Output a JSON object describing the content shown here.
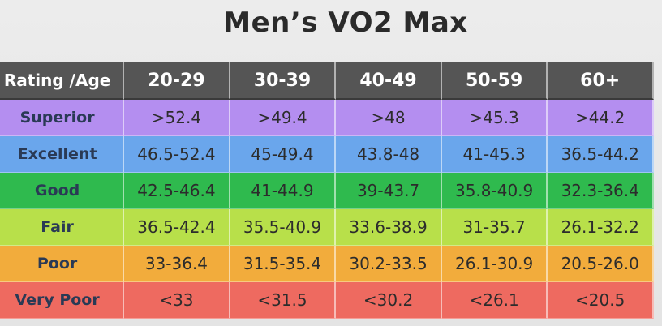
{
  "title": "Men’s VO2 Max",
  "colors": {
    "header": "#555555",
    "superior": "#b48ef0",
    "excellent": "#6aa6ec",
    "good": "#2fba4e",
    "fair": "#b8e04a",
    "poor": "#f2ac3c",
    "very_poor": "#ee6a60"
  },
  "chart_data": {
    "type": "table",
    "title": "Men’s VO2 Max",
    "columns": [
      "Rating /Age",
      "20-29",
      "30-39",
      "40-49",
      "50-59",
      "60+"
    ],
    "rows": [
      {
        "rating": "Superior",
        "color": "#b48ef0",
        "values": [
          ">52.4",
          ">49.4",
          ">48",
          ">45.3",
          ">44.2"
        ]
      },
      {
        "rating": "Excellent",
        "color": "#6aa6ec",
        "values": [
          "46.5-52.4",
          "45-49.4",
          "43.8-48",
          "41-45.3",
          "36.5-44.2"
        ]
      },
      {
        "rating": "Good",
        "color": "#2fba4e",
        "values": [
          "42.5-46.4",
          "41-44.9",
          "39-43.7",
          "35.8-40.9",
          "32.3-36.4"
        ]
      },
      {
        "rating": "Fair",
        "color": "#b8e04a",
        "values": [
          "36.5-42.4",
          "35.5-40.9",
          "33.6-38.9",
          "31-35.7",
          "26.1-32.2"
        ]
      },
      {
        "rating": "Poor",
        "color": "#f2ac3c",
        "values": [
          "33-36.4",
          "31.5-35.4",
          "30.2-33.5",
          "26.1-30.9",
          "20.5-26.0"
        ]
      },
      {
        "rating": "Very Poor",
        "color": "#ee6a60",
        "values": [
          "<33",
          "<31.5",
          "<30.2",
          "<26.1",
          "<20.5"
        ]
      }
    ]
  }
}
